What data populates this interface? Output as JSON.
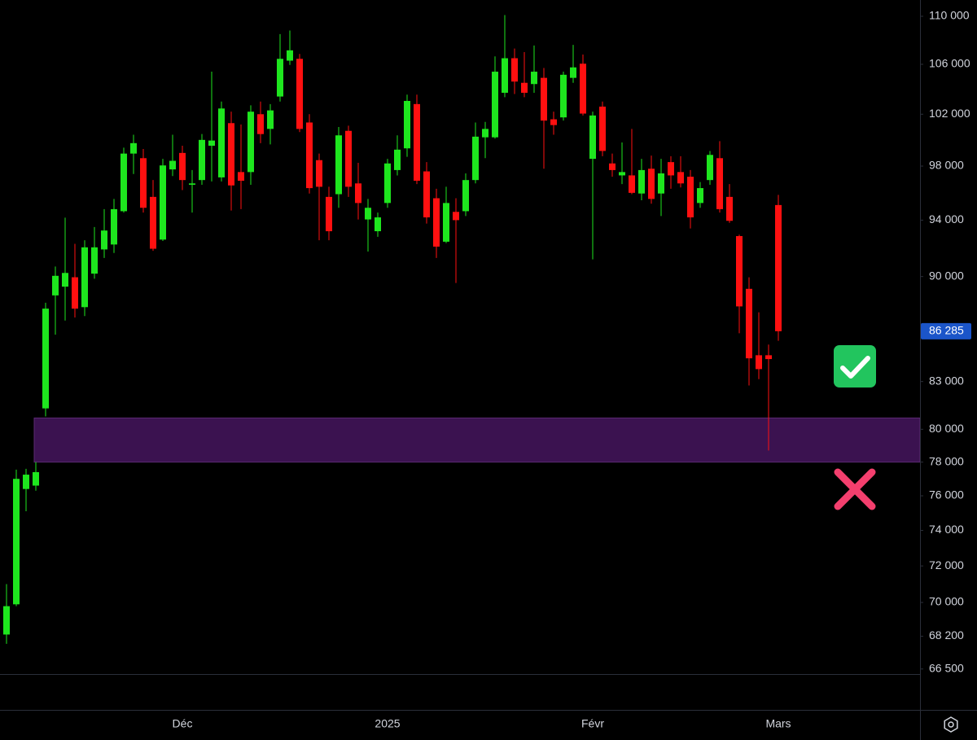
{
  "chart_data": {
    "type": "candlestick",
    "categories": [
      null,
      null,
      null,
      null,
      null,
      null,
      null,
      null,
      null,
      null,
      null,
      null,
      null,
      null,
      null,
      null,
      null,
      null,
      "Déc",
      null,
      null,
      null,
      null,
      null,
      null,
      null,
      null,
      null,
      null,
      null,
      null,
      null,
      null,
      null,
      null,
      null,
      null,
      null,
      null,
      "2025",
      null,
      null,
      null,
      null,
      null,
      null,
      null,
      null,
      null,
      null,
      null,
      null,
      null,
      null,
      null,
      null,
      null,
      null,
      null,
      null,
      "Févr",
      null,
      null,
      null,
      null,
      null,
      null,
      null,
      null,
      null,
      null,
      null,
      null,
      null,
      null,
      null,
      null,
      null,
      null,
      "Mars"
    ],
    "open": [
      68290,
      69900,
      76400,
      76600,
      81300,
      88700,
      89300,
      89950,
      87900,
      90200,
      91900,
      92250,
      94650,
      98950,
      98600,
      95700,
      92600,
      97750,
      99000,
      96600,
      96950,
      99550,
      97150,
      101300,
      97550,
      97550,
      102000,
      100850,
      103400,
      106300,
      106450,
      101350,
      98450,
      95700,
      95900,
      100700,
      96700,
      94050,
      93200,
      95250,
      97700,
      99350,
      102800,
      97600,
      95600,
      92450,
      94600,
      94650,
      96950,
      100200,
      100200,
      103700,
      106500,
      104500,
      104400,
      104900,
      101600,
      101750,
      104900,
      106050,
      98550,
      102600,
      98200,
      97300,
      97300,
      95950,
      97800,
      95950,
      98300,
      97550,
      97200,
      95250,
      96950,
      98600,
      95700,
      92850,
      89150,
      84700,
      84700,
      95100
    ],
    "high": [
      71000,
      77550,
      77600,
      78000,
      88200,
      90700,
      94180,
      92300,
      92550,
      93500,
      94800,
      95550,
      99400,
      100400,
      99300,
      96950,
      98550,
      100400,
      99550,
      97700,
      100450,
      105400,
      103000,
      102200,
      101200,
      102700,
      103000,
      102800,
      108500,
      108800,
      106850,
      102000,
      98950,
      96450,
      101000,
      101100,
      98250,
      95550,
      94550,
      98550,
      100350,
      103550,
      103550,
      98300,
      96300,
      96450,
      95600,
      97450,
      101350,
      101400,
      106650,
      110100,
      107300,
      107000,
      107550,
      105700,
      102200,
      105400,
      107600,
      106800,
      102200,
      103000,
      98950,
      99800,
      100850,
      98550,
      98800,
      98550,
      98750,
      98750,
      97700,
      96800,
      99150,
      99900,
      96650,
      92950,
      89950,
      87550,
      85400,
      95850
    ],
    "low": [
      67800,
      69800,
      75100,
      76300,
      80800,
      86050,
      87000,
      87200,
      87300,
      89850,
      91300,
      91650,
      94550,
      97400,
      94550,
      91800,
      92500,
      97250,
      96200,
      94550,
      96600,
      96850,
      96850,
      94700,
      94800,
      96600,
      99750,
      99650,
      103000,
      105950,
      100600,
      95950,
      92550,
      92550,
      94900,
      95700,
      94050,
      91750,
      92800,
      94900,
      97300,
      98700,
      96650,
      93750,
      91300,
      92350,
      89550,
      94300,
      96700,
      98600,
      100100,
      103350,
      103600,
      103350,
      103700,
      97800,
      100400,
      101500,
      104500,
      101900,
      91200,
      98750,
      97200,
      96650,
      95900,
      95450,
      95200,
      94300,
      96300,
      96400,
      93400,
      94900,
      96600,
      94550,
      93800,
      86150,
      82750,
      83150,
      78700,
      85650
    ],
    "close": [
      69800,
      77000,
      77250,
      77400,
      87800,
      90050,
      90250,
      87800,
      92050,
      92050,
      93250,
      94800,
      98950,
      99750,
      94900,
      91950,
      98050,
      98400,
      96950,
      96700,
      100000,
      99950,
      102450,
      96550,
      96900,
      102200,
      100450,
      102300,
      106450,
      107150,
      100850,
      96350,
      96450,
      93200,
      100350,
      96450,
      95250,
      94900,
      94200,
      98200,
      99250,
      103050,
      96900,
      94200,
      92100,
      95250,
      94000,
      96950,
      100250,
      100850,
      105400,
      106500,
      104600,
      103700,
      105400,
      101500,
      101150,
      105150,
      105750,
      102050,
      101900,
      99150,
      97700,
      97550,
      96000,
      97700,
      95550,
      97450,
      97300,
      96700,
      94200,
      96350,
      98850,
      94800,
      93950,
      87950,
      84500,
      83800,
      84450,
      86285
    ],
    "up_color": "#1ee61e",
    "down_color": "#ff1010",
    "log_scale": true,
    "grid": false,
    "ylim": [
      66240,
      111390
    ],
    "yticks": [
      {
        "value": 110000,
        "label": "110 000"
      },
      {
        "value": 106000,
        "label": "106 000"
      },
      {
        "value": 102000,
        "label": "102 000"
      },
      {
        "value": 98000,
        "label": "98 000"
      },
      {
        "value": 94000,
        "label": "94 000"
      },
      {
        "value": 90000,
        "label": "90 000"
      },
      {
        "value": 83000,
        "label": "83 000"
      },
      {
        "value": 80000,
        "label": "80 000"
      },
      {
        "value": 78000,
        "label": "78 000"
      },
      {
        "value": 76000,
        "label": "76 000"
      },
      {
        "value": 74000,
        "label": "74 000"
      },
      {
        "value": 72000,
        "label": "72 000"
      },
      {
        "value": 70000,
        "label": "70 000"
      },
      {
        "value": 68200,
        "label": "68 200"
      },
      {
        "value": 66500,
        "label": "66 500"
      }
    ],
    "last_price": {
      "value": 86285,
      "label": "86 285"
    },
    "zone": [
      78000,
      80700
    ],
    "zone_color": "#3b1250"
  }
}
